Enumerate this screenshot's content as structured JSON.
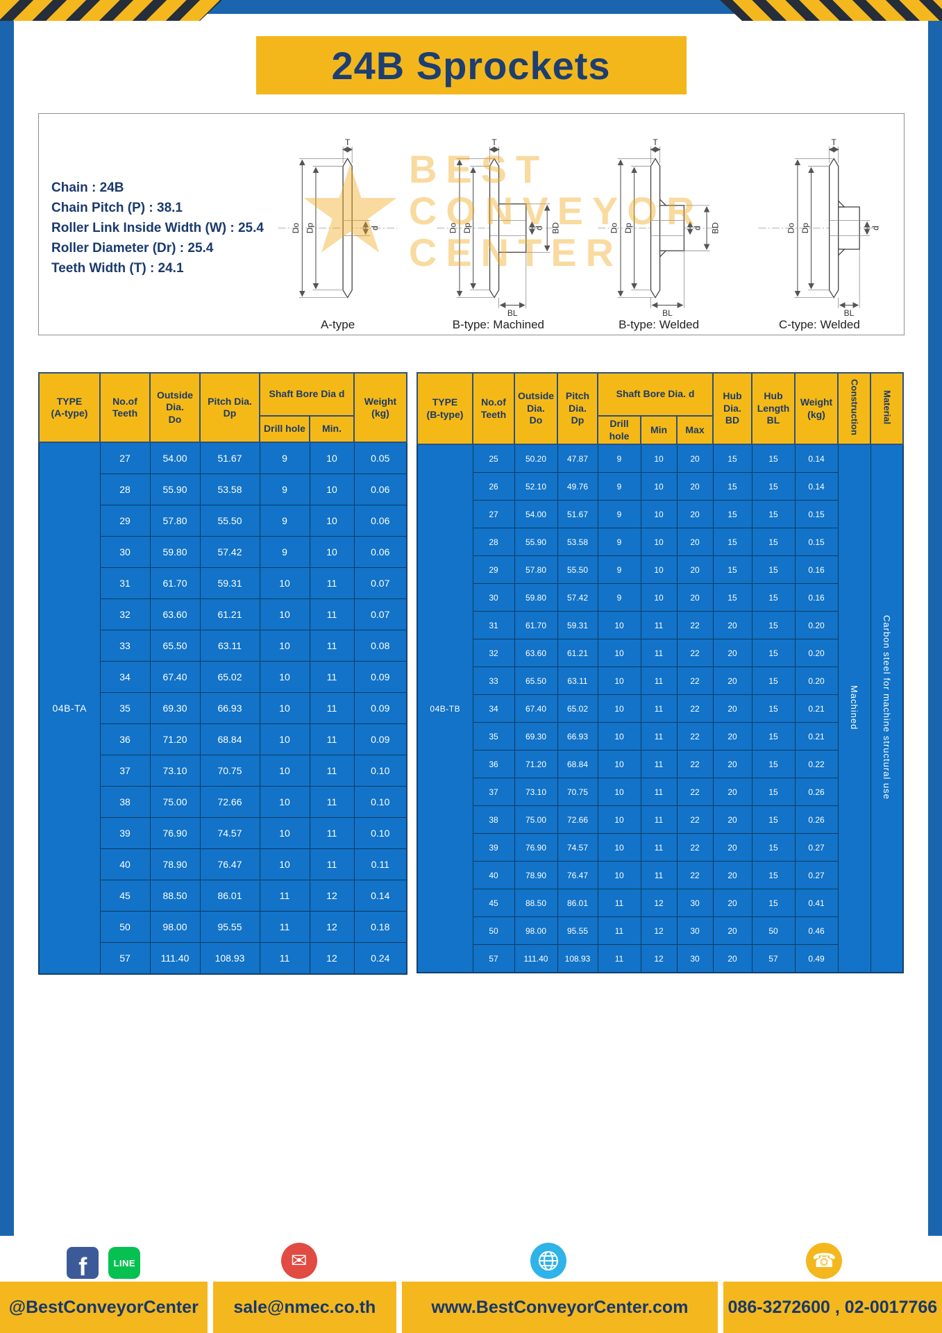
{
  "page": {
    "title": "24B Sprockets"
  },
  "colors": {
    "accent_yellow": "#F4B71D",
    "navy": "#1B3A66",
    "table_blue": "#1273C8",
    "frame_blue": "#1A65AE"
  },
  "specs": {
    "lines": [
      "Chain : 24B",
      "Chain Pitch (P) : 38.1",
      "Roller Link Inside Width (W) : 25.4",
      "Roller Diameter (Dr) : 25.4",
      "Teeth Width (T) : 24.1"
    ]
  },
  "watermark": {
    "line1": "BEST",
    "line2": "CONVEYOR",
    "line3": "CENTER",
    "star": "★"
  },
  "drawings": {
    "captions": [
      "A-type",
      "B-type: Machined",
      "B-type: Welded",
      "C-type: Welded"
    ],
    "dims": {
      "T": "T",
      "Do": "Do",
      "Dp": "Dp",
      "d": "d",
      "BD": "BD",
      "BL": "BL"
    }
  },
  "table_a": {
    "headers": {
      "type": "TYPE\n(A-type)",
      "teeth": "No.of\nTeeth",
      "outside": "Outside\nDia.\nDo",
      "pitch": "Pitch Dia.\nDp",
      "shaft_bore": "Shaft Bore Dia d",
      "drill": "Drill hole",
      "min": "Min.",
      "weight": "Weight\n(kg)"
    },
    "type_label": "04B-TA",
    "rows": [
      [
        "27",
        "54.00",
        "51.67",
        "9",
        "10",
        "0.05"
      ],
      [
        "28",
        "55.90",
        "53.58",
        "9",
        "10",
        "0.06"
      ],
      [
        "29",
        "57.80",
        "55.50",
        "9",
        "10",
        "0.06"
      ],
      [
        "30",
        "59.80",
        "57.42",
        "9",
        "10",
        "0.06"
      ],
      [
        "31",
        "61.70",
        "59.31",
        "10",
        "11",
        "0.07"
      ],
      [
        "32",
        "63.60",
        "61.21",
        "10",
        "11",
        "0.07"
      ],
      [
        "33",
        "65.50",
        "63.11",
        "10",
        "11",
        "0.08"
      ],
      [
        "34",
        "67.40",
        "65.02",
        "10",
        "11",
        "0.09"
      ],
      [
        "35",
        "69.30",
        "66.93",
        "10",
        "11",
        "0.09"
      ],
      [
        "36",
        "71.20",
        "68.84",
        "10",
        "11",
        "0.09"
      ],
      [
        "37",
        "73.10",
        "70.75",
        "10",
        "11",
        "0.10"
      ],
      [
        "38",
        "75.00",
        "72.66",
        "10",
        "11",
        "0.10"
      ],
      [
        "39",
        "76.90",
        "74.57",
        "10",
        "11",
        "0.10"
      ],
      [
        "40",
        "78.90",
        "76.47",
        "10",
        "11",
        "0.11"
      ],
      [
        "45",
        "88.50",
        "86.01",
        "11",
        "12",
        "0.14"
      ],
      [
        "50",
        "98.00",
        "95.55",
        "11",
        "12",
        "0.18"
      ],
      [
        "57",
        "111.40",
        "108.93",
        "11",
        "12",
        "0.24"
      ]
    ]
  },
  "table_b": {
    "headers": {
      "type": "TYPE\n(B-type)",
      "teeth": "No.of\nTeeth",
      "outside": "Outside\nDia.\nDo",
      "pitch": "Pitch\nDia.\nDp",
      "shaft_bore": "Shaft Bore Dia.  d",
      "drill": "Drill hole",
      "min": "Min",
      "max": "Max",
      "hub_dia": "Hub\nDia.\nBD",
      "hub_len": "Hub\nLength\nBL",
      "weight": "Weight\n(kg)",
      "construction": "Construction",
      "material": "Material"
    },
    "type_label": "04B-TB",
    "construction_value": "Machined",
    "material_value": "Carbon steel for machine structural use",
    "rows": [
      [
        "25",
        "50.20",
        "47.87",
        "9",
        "10",
        "20",
        "15",
        "15",
        "0.14"
      ],
      [
        "26",
        "52.10",
        "49.76",
        "9",
        "10",
        "20",
        "15",
        "15",
        "0.14"
      ],
      [
        "27",
        "54.00",
        "51.67",
        "9",
        "10",
        "20",
        "15",
        "15",
        "0.15"
      ],
      [
        "28",
        "55.90",
        "53.58",
        "9",
        "10",
        "20",
        "15",
        "15",
        "0.15"
      ],
      [
        "29",
        "57.80",
        "55.50",
        "9",
        "10",
        "20",
        "15",
        "15",
        "0.16"
      ],
      [
        "30",
        "59.80",
        "57.42",
        "9",
        "10",
        "20",
        "15",
        "15",
        "0.16"
      ],
      [
        "31",
        "61.70",
        "59.31",
        "10",
        "11",
        "22",
        "20",
        "15",
        "0.20"
      ],
      [
        "32",
        "63.60",
        "61.21",
        "10",
        "11",
        "22",
        "20",
        "15",
        "0.20"
      ],
      [
        "33",
        "65.50",
        "63.11",
        "10",
        "11",
        "22",
        "20",
        "15",
        "0.20"
      ],
      [
        "34",
        "67.40",
        "65.02",
        "10",
        "11",
        "22",
        "20",
        "15",
        "0.21"
      ],
      [
        "35",
        "69.30",
        "66.93",
        "10",
        "11",
        "22",
        "20",
        "15",
        "0.21"
      ],
      [
        "36",
        "71.20",
        "68.84",
        "10",
        "11",
        "22",
        "20",
        "15",
        "0.22"
      ],
      [
        "37",
        "73.10",
        "70.75",
        "10",
        "11",
        "22",
        "20",
        "15",
        "0.26"
      ],
      [
        "38",
        "75.00",
        "72.66",
        "10",
        "11",
        "22",
        "20",
        "15",
        "0.26"
      ],
      [
        "39",
        "76.90",
        "74.57",
        "10",
        "11",
        "22",
        "20",
        "15",
        "0.27"
      ],
      [
        "40",
        "78.90",
        "76.47",
        "10",
        "11",
        "22",
        "20",
        "15",
        "0.27"
      ],
      [
        "45",
        "88.50",
        "86.01",
        "11",
        "12",
        "30",
        "20",
        "15",
        "0.41"
      ],
      [
        "50",
        "98.00",
        "95.55",
        "11",
        "12",
        "30",
        "20",
        "50",
        "0.46"
      ],
      [
        "57",
        "111.40",
        "108.93",
        "11",
        "12",
        "30",
        "20",
        "57",
        "0.49"
      ]
    ]
  },
  "footer": {
    "facebook_glyph": "f",
    "line_glyph": "LINE",
    "mail_glyph": "✉",
    "phone_glyph": "☎",
    "sections": [
      {
        "label": "@BestConveyorCenter"
      },
      {
        "label": "sale@nmec.co.th"
      },
      {
        "label": "www.BestConveyorCenter.com"
      },
      {
        "label": "086-3272600 , 02-0017766"
      }
    ]
  }
}
